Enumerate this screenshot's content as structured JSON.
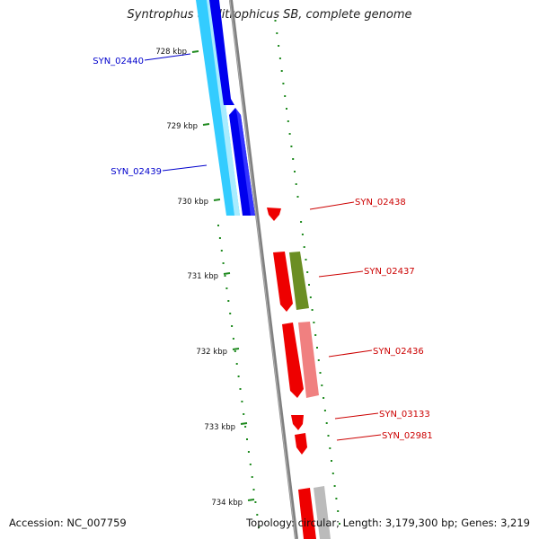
{
  "title": "Syntrophus aciditrophicus SB, complete genome",
  "footer": {
    "accession": "Accession: NC_007759",
    "topology": "Topology: circular; Length: 3,179,300 bp; Genes: 3,219"
  },
  "ticks": [
    {
      "label": "728 kbp",
      "kbp": 728
    },
    {
      "label": "729 kbp",
      "kbp": 729
    },
    {
      "label": "730 kbp",
      "kbp": 730
    },
    {
      "label": "731 kbp",
      "kbp": 731
    },
    {
      "label": "732 kbp",
      "kbp": 732
    },
    {
      "label": "733 kbp",
      "kbp": 733
    },
    {
      "label": "734 kbp",
      "kbp": 734
    }
  ],
  "colors": {
    "backbone": "#808080",
    "gc_ticks": "#1f8a1f",
    "reverse_strand_label": "#0000cc",
    "forward_strand_label": "#cc0000",
    "cds_reverse": "#0000ee",
    "cog_reverse": "#33ccff",
    "cds_forward": "#ee0000",
    "cog_olive": "#6b8e23",
    "cog_pink": "#f08080",
    "cog_grey": "#bbbbbb"
  },
  "genes": [
    {
      "name": "SYN_02440",
      "strand": "-",
      "start_kbp": 727.4,
      "end_kbp": 728.8
    },
    {
      "name": "SYN_02439",
      "strand": "-",
      "start_kbp": 728.8,
      "end_kbp": 730.2
    },
    {
      "name": "SYN_02438",
      "strand": "+",
      "start_kbp": 730.1,
      "end_kbp": 730.25
    },
    {
      "name": "SYN_02437",
      "strand": "+",
      "start_kbp": 730.75,
      "end_kbp": 731.5
    },
    {
      "name": "SYN_02436",
      "strand": "+",
      "start_kbp": 731.7,
      "end_kbp": 732.65
    },
    {
      "name": "SYN_03133",
      "strand": "+",
      "start_kbp": 732.9,
      "end_kbp": 733.1
    },
    {
      "name": "SYN_02981",
      "strand": "+",
      "start_kbp": 733.1,
      "end_kbp": 733.4
    }
  ]
}
